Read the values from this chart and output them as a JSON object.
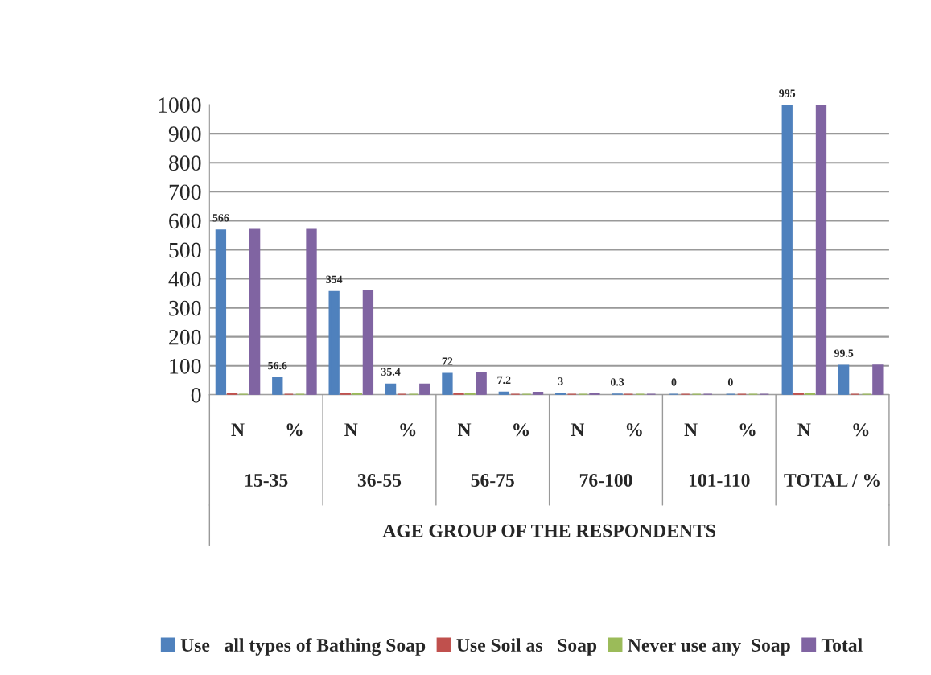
{
  "chart_data": {
    "type": "bar",
    "xlabel": "AGE GROUP OF THE RESPONDENTS",
    "categories": [
      "N",
      "%",
      "N",
      "%",
      "N",
      "%",
      "N",
      "%",
      "N",
      "%",
      "N",
      "%"
    ],
    "annotations": [
      "15-35",
      "36-55",
      "56-75",
      "76-100",
      "101-110",
      "TOTAL / %"
    ],
    "series": [
      {
        "name": "Use   all types of Bathing Soap",
        "color": "#4f81bd",
        "values": [
          566,
          56.6,
          354,
          35.4,
          72,
          7.2,
          3,
          0.3,
          0,
          0,
          995,
          99.5
        ],
        "value_labels": [
          "566",
          "56.6",
          "354",
          "35.4",
          "72",
          "7.2",
          "3",
          "0.3",
          "0",
          "0",
          "995",
          "99.5"
        ]
      },
      {
        "name": "Use Soil as   Soap",
        "color": "#c0504d",
        "values": [
          2,
          0,
          1,
          0,
          1,
          0,
          0,
          0,
          0,
          0,
          3,
          0
        ]
      },
      {
        "name": "Never use any  Soap",
        "color": "#9bbb59",
        "values": [
          0,
          0,
          1,
          0,
          1,
          0,
          0,
          0,
          0,
          0,
          2,
          0
        ]
      },
      {
        "name": "Total",
        "color": "#8064a2",
        "values": [
          568,
          568,
          356,
          35,
          74,
          7,
          3,
          0,
          0,
          0,
          1000,
          100
        ]
      }
    ],
    "ylim": [
      0,
      1000
    ],
    "yticks": [
      0,
      100,
      200,
      300,
      400,
      500,
      600,
      700,
      800,
      900,
      1000
    ],
    "grid": "y",
    "legend": "bottom"
  }
}
